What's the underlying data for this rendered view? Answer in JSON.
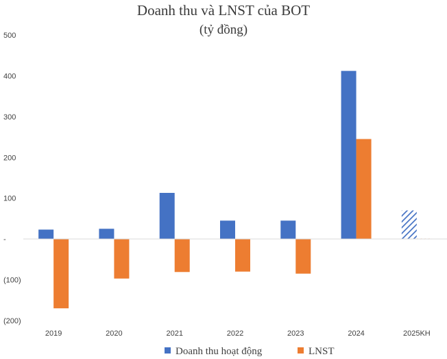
{
  "chart_data": {
    "type": "bar",
    "title": "Doanh thu và LNST của BOT",
    "subtitle": "(tỷ đồng)",
    "categories": [
      "2019",
      "2020",
      "2021",
      "2022",
      "2023",
      "2024",
      "2025KH"
    ],
    "series": [
      {
        "name": "Doanh thu hoạt động",
        "color": "#4472C4",
        "values": [
          23,
          25,
          113,
          45,
          45,
          412,
          70
        ]
      },
      {
        "name": "LNST",
        "color": "#ED7D31",
        "values": [
          -170,
          -97,
          -81,
          -80,
          -85,
          245,
          1
        ]
      }
    ],
    "plan_category": "2025KH",
    "ylim": [
      -200,
      500
    ],
    "yticks": [
      500,
      400,
      300,
      200,
      100,
      0,
      -100,
      -200
    ],
    "ytick_labels": [
      "500",
      "400",
      "300",
      "200",
      "100",
      "-",
      "(100)",
      "(200)"
    ],
    "legend_position": "bottom-center",
    "grid": false
  }
}
